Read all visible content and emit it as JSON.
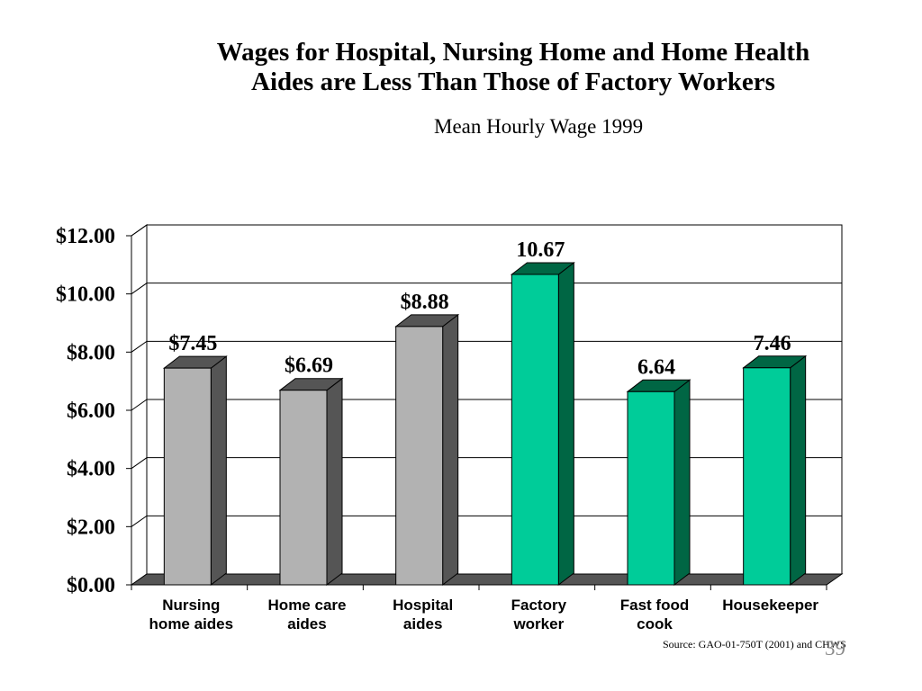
{
  "slide": {
    "title_line1": "Wages for Hospital, Nursing Home and Home Health",
    "title_line2": "Aides are Less Than Those of Factory Workers",
    "subtitle": "Mean Hourly Wage 1999",
    "source": "Source: GAO-01-750T (2001) and CHWS",
    "slide_number": "39"
  },
  "chart_data": {
    "type": "bar",
    "title": "Mean Hourly Wage 1999",
    "categories": [
      [
        "Nursing",
        "home aides"
      ],
      [
        "Home care",
        "aides"
      ],
      [
        "Hospital",
        "aides"
      ],
      [
        "Factory",
        "worker"
      ],
      [
        "Fast food",
        "cook"
      ],
      [
        "Housekeeper"
      ]
    ],
    "values": [
      7.45,
      6.69,
      8.88,
      10.67,
      6.64,
      7.46
    ],
    "data_labels": [
      "$7.45",
      "$6.69",
      "$8.88",
      "10.67",
      "6.64",
      "7.46"
    ],
    "bar_colors": [
      "#b2b2b2",
      "#b2b2b2",
      "#b2b2b2",
      "#00cc99",
      "#00cc99",
      "#00cc99"
    ],
    "side_colors": [
      "#555555",
      "#555555",
      "#555555",
      "#006644",
      "#006644",
      "#006644"
    ],
    "y_tick_labels": [
      "$0.00",
      "$2.00",
      "$4.00",
      "$6.00",
      "$8.00",
      "$10.00",
      "$12.00"
    ],
    "ylim": [
      0,
      12
    ],
    "grid": true,
    "legend": "none"
  }
}
